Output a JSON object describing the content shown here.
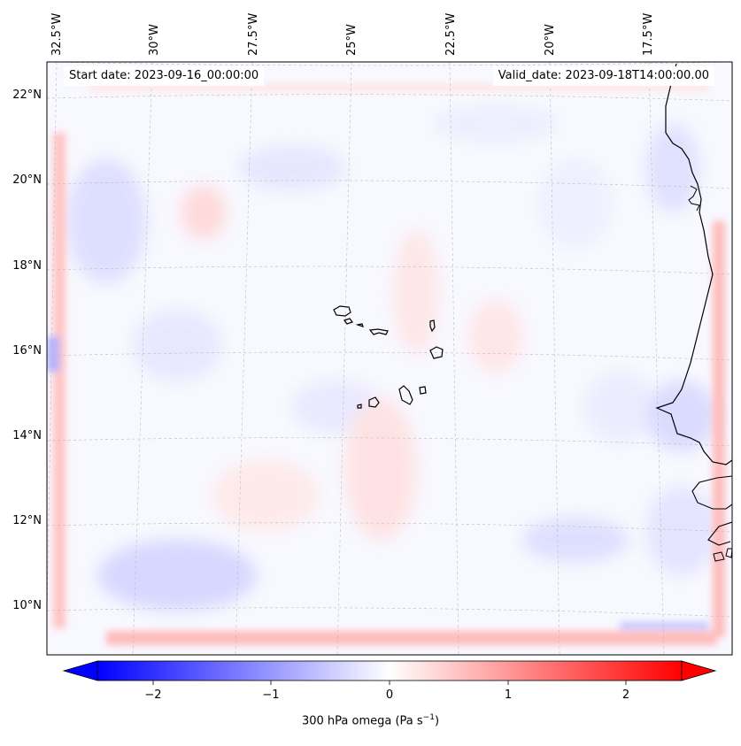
{
  "header": {
    "start_date": "Start date: 2023-09-16_00:00:00",
    "valid_date": "Valid_date: 2023-09-18T14:00:00.00"
  },
  "map": {
    "projection": "lambert-conformal",
    "variable": "300 hPa omega",
    "longitude_labels": [
      "32.5°W",
      "30°W",
      "27.5°W",
      "25°W",
      "22.5°W",
      "20°W",
      "17.5°W"
    ],
    "latitude_labels": [
      "22°N",
      "20°N",
      "18°N",
      "16°N",
      "14°N",
      "12°N",
      "10°N"
    ],
    "features": [
      "Cabo Verde islands",
      "West African coastline"
    ],
    "gridlines": true
  },
  "colorbar": {
    "label_prefix": "300 hPa omega (Pa s",
    "label_exp": "−1",
    "label_suffix": ")",
    "ticks": [
      "−2",
      "−1",
      "0",
      "1",
      "2"
    ],
    "min": -2.6,
    "max": 2.6,
    "colormap": "bwr",
    "extend": "both",
    "colors": {
      "low": "#0000ff",
      "mid": "#ffffff",
      "high": "#ff0000"
    }
  }
}
